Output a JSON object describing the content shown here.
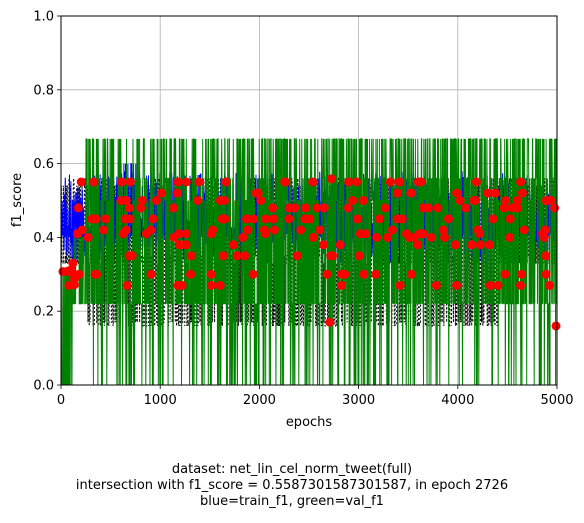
{
  "chart_data": {
    "type": "line",
    "xlabel": "epochs",
    "ylabel": "f1_score",
    "xlim": [
      0,
      5000
    ],
    "ylim": [
      0,
      1.0
    ],
    "x_ticks": [
      "0",
      "1000",
      "2000",
      "3000",
      "4000",
      "5000"
    ],
    "y_ticks": [
      "0.0",
      "0.2",
      "0.4",
      "0.6",
      "0.8",
      "1.0"
    ],
    "grid": true,
    "series": [
      {
        "name": "train_f1",
        "color": "#0000ff",
        "style": "line",
        "range": [
          0.33,
          0.58
        ],
        "typical": 0.42
      },
      {
        "name": "val_f1",
        "color": "#008000",
        "style": "line",
        "levels": [
          0.0,
          0.22,
          0.5,
          0.56,
          0.667
        ]
      },
      {
        "style": "dashed",
        "color": "#000000",
        "levels": [
          0.56,
          0.54,
          0.35,
          0.33,
          0.17,
          0.16
        ]
      },
      {
        "style": "markers",
        "color": "#ff0000"
      }
    ],
    "intersection": {
      "epoch": 2726,
      "value": 0.5587301587301587
    }
  },
  "caption": {
    "line1": "dataset: net_lin_cel_norm_tweet(full)",
    "line2": "intersection with f1_score = 0.5587301587301587, in epoch 2726",
    "line3": "blue=train_f1, green=val_f1"
  }
}
